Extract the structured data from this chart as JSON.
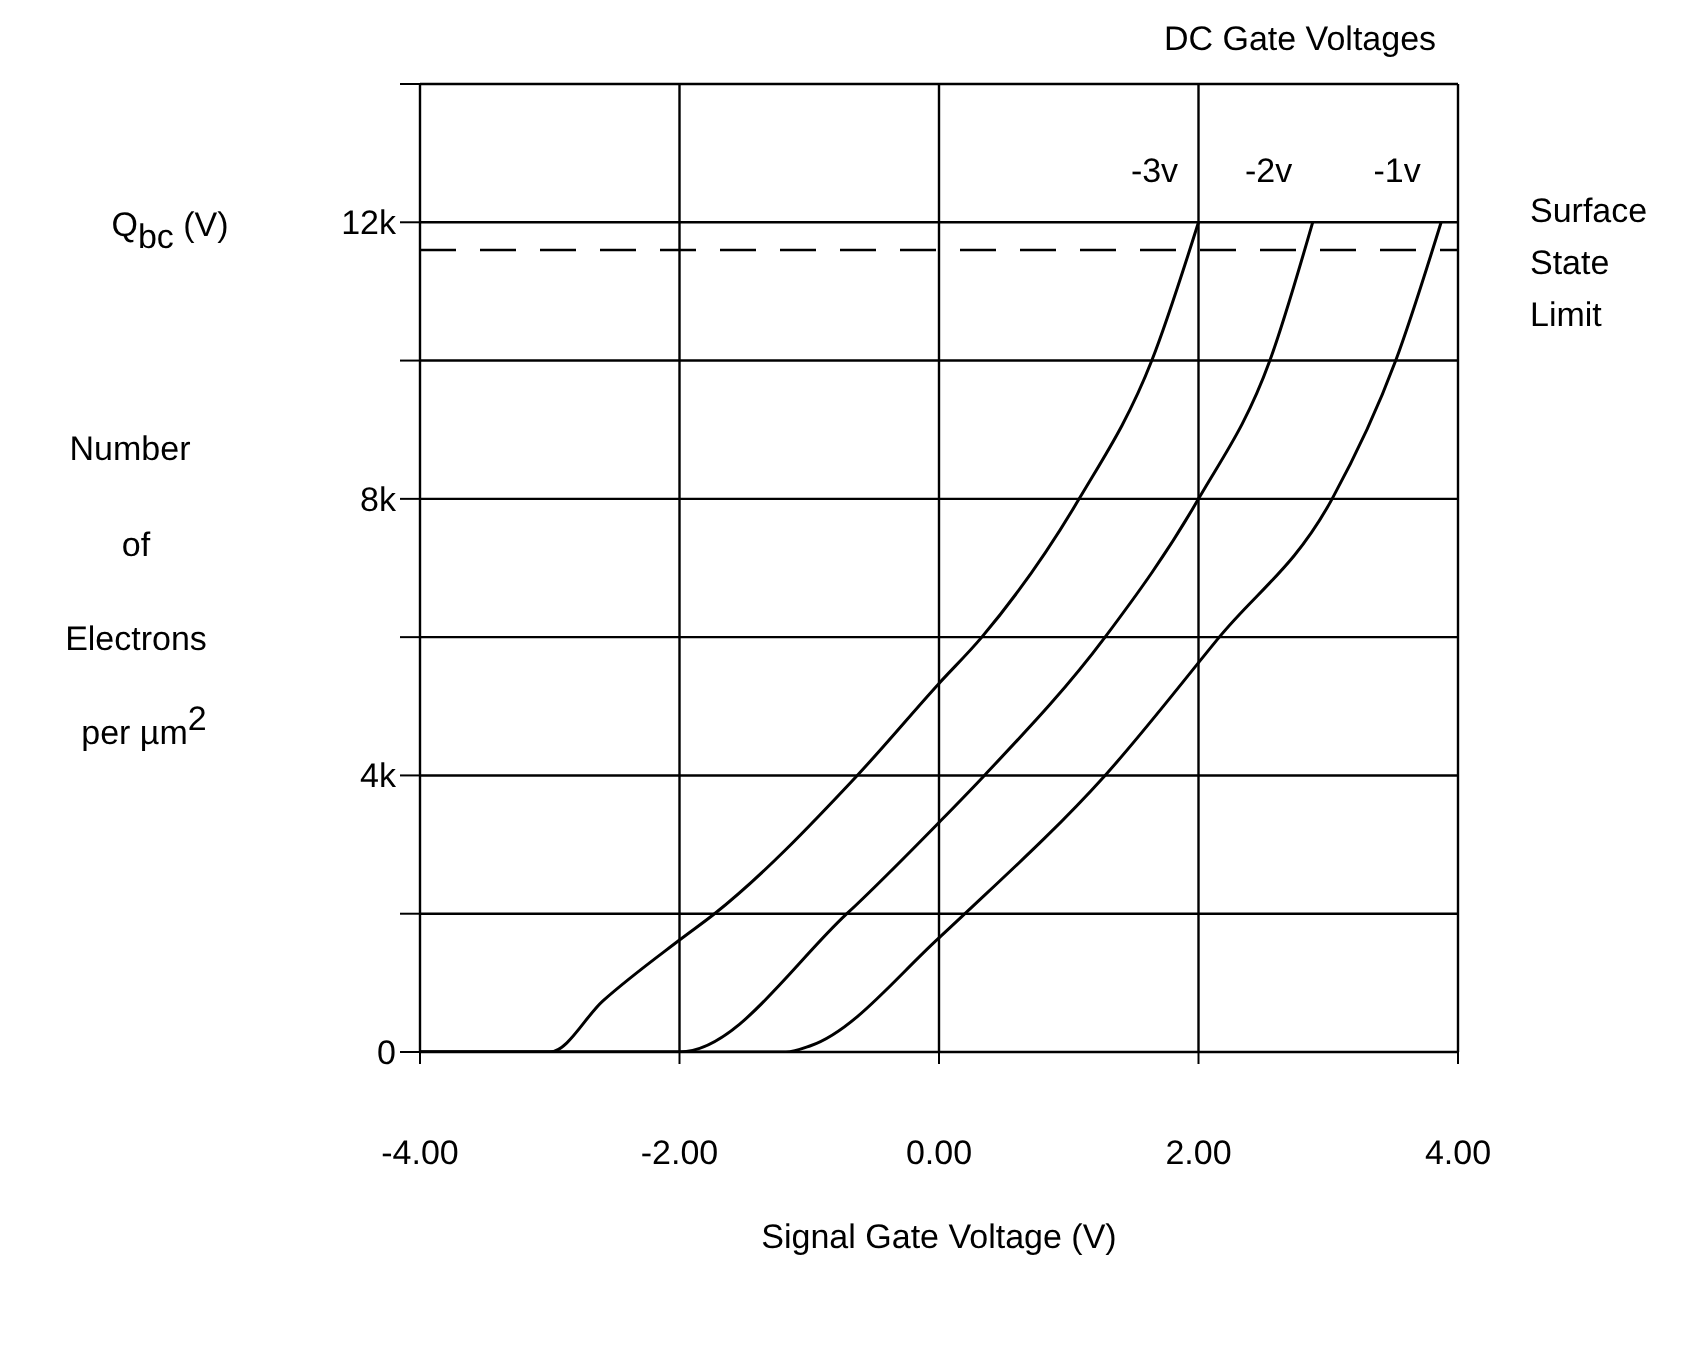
{
  "chart_data": {
    "type": "line",
    "legend_title": "DC Gate Voltages",
    "xlabel": "Signal Gate Voltage (V)",
    "ylabel": "Q$_{bc}$ (V)\nNumber\nof\nElectrons\nper µm$^{2}$",
    "xlim": [
      -4,
      4
    ],
    "xticks": [
      {
        "value": -4,
        "label": "-4.00"
      },
      {
        "value": -2,
        "label": "-2.00"
      },
      {
        "value": 0,
        "label": "0.00"
      },
      {
        "value": 2,
        "label": "2.00"
      },
      {
        "value": 4,
        "label": "4.00"
      }
    ],
    "ylim": [
      0,
      14000
    ],
    "yticks": [
      0,
      {
        "value": 2000,
        "label": null
      },
      {
        "value": 4000,
        "label": "4k"
      },
      {
        "value": 6000,
        "label": null
      },
      {
        "value": 8000,
        "label": "8k"
      },
      {
        "value": 10000,
        "label": null
      },
      {
        "value": 12000,
        "label": "12k"
      },
      {
        "value": 14000,
        "label": null
      }
    ],
    "grid": true,
    "marker": "none",
    "line_style": "solid",
    "series": [
      {
        "name": "-3v",
        "color": "#000000",
        "x": [
          -4,
          -3.0,
          -2.59,
          -2,
          -1.73,
          -0.63,
          0,
          0.33,
          1.08,
          1.64,
          2.0
        ],
        "values": [
          0,
          0,
          740,
          1620,
          2000,
          4000,
          5330,
          6000,
          8000,
          10000,
          12000
        ]
      },
      {
        "name": "-2v",
        "color": "#000000",
        "x": [
          -4,
          -2,
          -0.71,
          0,
          0.35,
          1.28,
          2.0,
          2.55,
          2.88
        ],
        "values": [
          0,
          0,
          2000,
          3320,
          4000,
          6000,
          8000,
          10000,
          12000
        ]
      },
      {
        "name": "-1v",
        "color": "#000000",
        "x": [
          -4,
          -1.18,
          -0.99,
          0,
          0.2,
          1.28,
          2.16,
          3.03,
          3.52,
          3.87
        ],
        "values": [
          0,
          0,
          90,
          1650,
          2000,
          4000,
          6000,
          8000,
          10000,
          12000
        ]
      }
    ],
    "ref_lines": [
      {
        "axis": "y",
        "value": 11600,
        "label": "Surface State Limit",
        "line_style": "dashed"
      }
    ]
  }
}
